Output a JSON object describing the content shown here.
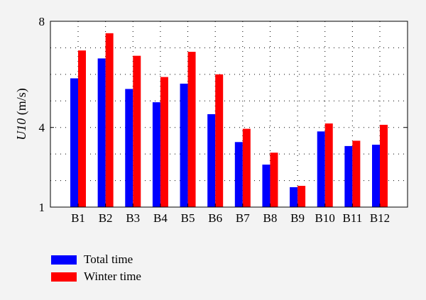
{
  "chart_data": {
    "type": "bar",
    "categories": [
      "B1",
      "B2",
      "B3",
      "B4",
      "B5",
      "B6",
      "B7",
      "B8",
      "B9",
      "B10",
      "B11",
      "B12"
    ],
    "series": [
      {
        "name": "Total time",
        "color": "#0000ff",
        "values": [
          5.85,
          6.6,
          5.45,
          4.95,
          5.65,
          4.5,
          3.45,
          2.6,
          1.75,
          3.85,
          3.3,
          3.35
        ]
      },
      {
        "name": "Winter time",
        "color": "#ff0000",
        "values": [
          6.9,
          7.55,
          6.7,
          5.9,
          6.85,
          6.0,
          3.95,
          3.05,
          1.8,
          4.15,
          3.5,
          4.1
        ]
      }
    ],
    "ylabel_var": "U10",
    "ylabel_unit": " (m/s)",
    "ylim": [
      1,
      8
    ],
    "yticks": [
      "1",
      "4",
      "8"
    ],
    "ytick_values": [
      1,
      4,
      8
    ],
    "y_gridlines": [
      2,
      3,
      4,
      5,
      6,
      7
    ],
    "grid": "dotted",
    "legend_position": "bottom-left"
  }
}
